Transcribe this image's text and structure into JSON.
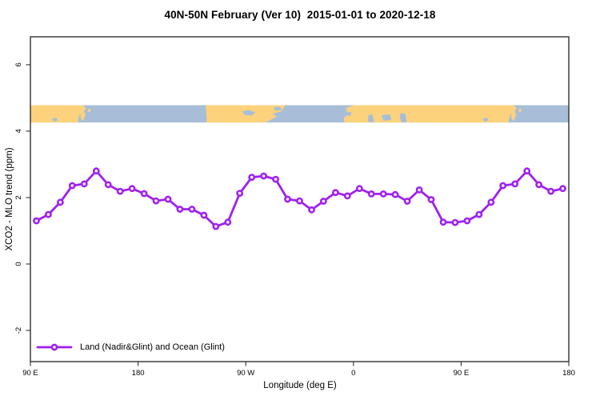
{
  "title": "40N-50N February (Ver 10)  2015-01-01 to 2020-12-18",
  "axes": {
    "x_label": "Longitude (deg E)",
    "y_label": "XCO2 - MLO trend (ppm)",
    "x_ticks": [
      {
        "offset": 0,
        "label": "90 E"
      },
      {
        "offset": 90,
        "label": "180"
      },
      {
        "offset": 180,
        "label": "90 W"
      },
      {
        "offset": 270,
        "label": "0"
      },
      {
        "offset": 360,
        "label": "90 E"
      },
      {
        "offset": 450,
        "label": "180"
      }
    ],
    "y_ticks": [
      -2,
      0,
      2,
      4,
      6
    ],
    "x_range_deg_from_90E": [
      0,
      450
    ],
    "y_range": [
      -2.94,
      6.84
    ]
  },
  "legend": {
    "label": "Land (Nadir&Glint) and Ocean (Glint)"
  },
  "colors": {
    "line": "#a020f0",
    "land": "#fcd37c",
    "ocean": "#a8bed8",
    "axis": "#303030",
    "marker_fill": "#ffffff"
  },
  "chart_data": {
    "type": "line",
    "title": "40N-50N February (Ver 10)  2015-01-01 to 2020-12-18",
    "xlabel": "Longitude (deg E)",
    "ylabel": "XCO2 - MLO trend (ppm)",
    "x_axis_note": "longitude axis wraps: 90E > 180 > 90W > 0 > 90E > 180; offsets are degrees east of 90E; first 90-degree segment repeats at the end",
    "x_tick_labels": [
      "90 E",
      "180",
      "90 W",
      "0",
      "90 E",
      "180"
    ],
    "ylim_ticks": [
      -2,
      0,
      2,
      4,
      6
    ],
    "grid": false,
    "legend_position": "bottom-left-inside",
    "x_offsets_deg": [
      5,
      15,
      25,
      35,
      45,
      55,
      65,
      75,
      85,
      95,
      105,
      115,
      125,
      135,
      145,
      155,
      165,
      175,
      185,
      195,
      205,
      215,
      225,
      235,
      245,
      255,
      265,
      275,
      285,
      295,
      305,
      315,
      325,
      335,
      345,
      355,
      365,
      375,
      385,
      395,
      405,
      415,
      425,
      435,
      445
    ],
    "series": [
      {
        "name": "Land (Nadir&Glint) and Ocean (Glint)",
        "values": [
          1.3,
          1.49,
          1.86,
          2.36,
          2.41,
          2.8,
          2.39,
          2.19,
          2.27,
          2.12,
          1.9,
          1.95,
          1.65,
          1.65,
          1.47,
          1.13,
          1.26,
          2.13,
          2.61,
          2.65,
          2.55,
          1.95,
          1.9,
          1.63,
          1.89,
          2.15,
          2.05,
          2.27,
          2.11,
          2.11,
          2.09,
          1.89,
          2.23,
          1.94,
          1.26,
          1.25,
          1.3,
          1.49,
          1.86,
          2.36,
          2.41,
          2.8,
          2.39,
          2.19,
          2.27
        ]
      }
    ],
    "map_band": {
      "description": "40N-50N world-map strip (land=orange, ocean=blue) drawn across plot between trend values",
      "top_value": 4.78,
      "bottom_value": 4.26,
      "land_polygons": [
        [
          [
            0,
            0
          ],
          [
            44,
            0
          ],
          [
            46.5,
            0.2
          ],
          [
            41,
            0.55
          ],
          [
            39.5,
            1
          ],
          [
            0,
            1
          ]
        ],
        [
          [
            42,
            0.42
          ],
          [
            44.5,
            0.3
          ],
          [
            46,
            0.55
          ],
          [
            44,
            0.92
          ],
          [
            42,
            0.75
          ]
        ],
        [
          [
            48,
            0.25
          ],
          [
            50,
            0.2
          ],
          [
            50.5,
            0.35
          ],
          [
            48.5,
            0.4
          ]
        ],
        [
          [
            146.5,
            0
          ],
          [
            213,
            0
          ],
          [
            210,
            0.35
          ],
          [
            202,
            0.5
          ],
          [
            206,
            0.65
          ],
          [
            196.5,
            1
          ],
          [
            147.5,
            1
          ]
        ],
        [
          [
            262.5,
            1
          ],
          [
            262,
            0.75
          ],
          [
            265.5,
            0.5
          ],
          [
            263.5,
            0.2
          ],
          [
            268,
            0.05
          ],
          [
            271,
            0
          ],
          [
            404,
            0
          ],
          [
            406.5,
            0.2
          ],
          [
            401,
            0.55
          ],
          [
            399.5,
            1
          ]
        ],
        [
          [
            402,
            0.42
          ],
          [
            404.5,
            0.3
          ],
          [
            406,
            0.55
          ],
          [
            404,
            0.92
          ],
          [
            402,
            0.75
          ]
        ],
        [
          [
            408,
            0.25
          ],
          [
            410,
            0.2
          ],
          [
            410.5,
            0.35
          ],
          [
            408.5,
            0.4
          ]
        ]
      ],
      "water_patches": [
        [
          [
            18,
            0.78
          ],
          [
            21.5,
            0.72
          ],
          [
            23,
            0.88
          ],
          [
            19.5,
            0.95
          ]
        ],
        [
          [
            378,
            0.78
          ],
          [
            381.5,
            0.72
          ],
          [
            383,
            0.88
          ],
          [
            379.5,
            0.95
          ]
        ],
        [
          [
            177,
            0.35
          ],
          [
            183,
            0.28
          ],
          [
            188,
            0.42
          ],
          [
            185,
            0.6
          ],
          [
            179,
            0.55
          ]
        ],
        [
          [
            203,
            0.12
          ],
          [
            208.5,
            0.08
          ],
          [
            210.5,
            0.28
          ],
          [
            205,
            0.32
          ]
        ],
        [
          [
            264.5,
            0.42
          ],
          [
            268.5,
            0.38
          ],
          [
            267.5,
            0.62
          ],
          [
            263.8,
            0.58
          ]
        ],
        [
          [
            282.5,
            0.58
          ],
          [
            285.5,
            0.52
          ],
          [
            287.5,
            0.95
          ],
          [
            284,
            1
          ],
          [
            282,
            0.9
          ]
        ],
        [
          [
            293.5,
            0.58
          ],
          [
            300.5,
            0.52
          ],
          [
            301.5,
            0.85
          ],
          [
            295,
            0.9
          ]
        ],
        [
          [
            309.5,
            0.45
          ],
          [
            313.5,
            0.5
          ],
          [
            314.5,
            0.98
          ],
          [
            310.5,
            1
          ],
          [
            308.5,
            0.7
          ]
        ]
      ]
    }
  }
}
